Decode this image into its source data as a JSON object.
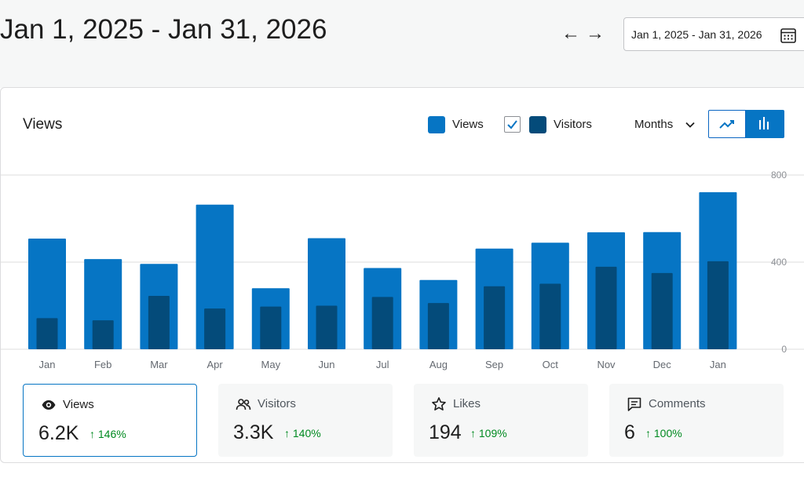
{
  "header": {
    "range_title": "Jan 1, 2025 - Jan 31, 2026",
    "prev_arrow": "←",
    "next_arrow": "→",
    "date_picker_label": "Jan 1, 2025 - Jan 31, 2026"
  },
  "panel": {
    "title": "Views",
    "legend": {
      "views_label": "Views",
      "visitors_label": "Visitors",
      "visitors_checked": true
    },
    "period_label": "Months",
    "chart_type_selected": "bar"
  },
  "colors": {
    "views": "#0675c4",
    "visitors": "#044b7a",
    "positive_change": "#008a20",
    "accent": "#0675c4"
  },
  "chart_data": {
    "type": "bar",
    "categories": [
      "Jan",
      "Feb",
      "Mar",
      "Apr",
      "May",
      "Jun",
      "Jul",
      "Aug",
      "Sep",
      "Oct",
      "Nov",
      "Dec",
      "Jan"
    ],
    "series": [
      {
        "name": "Views",
        "values": [
          508,
          414,
          392,
          664,
          280,
          510,
          373,
          318,
          462,
          489,
          537,
          538,
          721
        ]
      },
      {
        "name": "Visitors",
        "values": [
          143,
          133,
          245,
          187,
          196,
          200,
          240,
          212,
          289,
          301,
          379,
          350,
          404
        ]
      }
    ],
    "ylim": [
      0,
      800
    ],
    "yticks": [
      0,
      400,
      800
    ],
    "y_axis_position": "right",
    "grid": true,
    "title": "Views"
  },
  "stats": [
    {
      "label": "Views",
      "value": "6.2K",
      "change": "↑ 146%",
      "icon": "eye-icon",
      "selected": true
    },
    {
      "label": "Visitors",
      "value": "3.3K",
      "change": "↑ 140%",
      "icon": "people-icon",
      "selected": false
    },
    {
      "label": "Likes",
      "value": "194",
      "change": "↑ 109%",
      "icon": "star-icon",
      "selected": false
    },
    {
      "label": "Comments",
      "value": "6",
      "change": "↑ 100%",
      "icon": "comment-icon",
      "selected": false
    }
  ]
}
